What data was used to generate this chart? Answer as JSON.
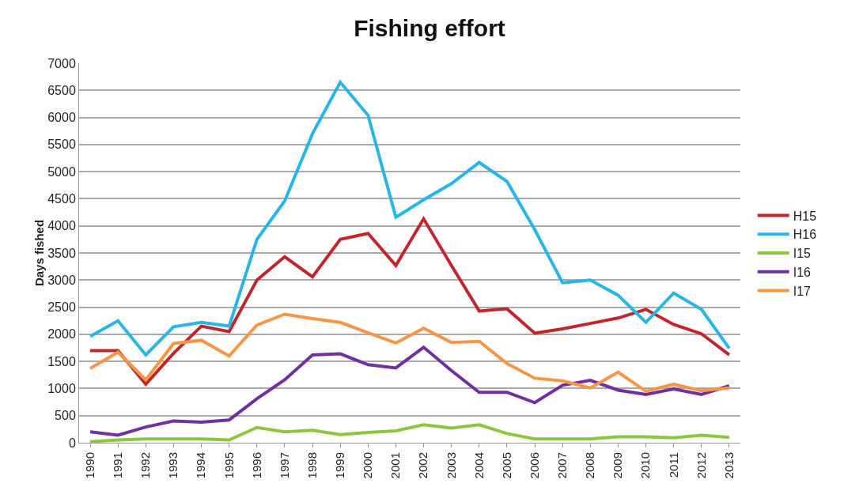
{
  "chart_data": {
    "type": "line",
    "title": "Fishing effort",
    "ylabel": "Days fished",
    "categories": [
      "1990",
      "1991",
      "1992",
      "1993",
      "1994",
      "1995",
      "1996",
      "1997",
      "1998",
      "1999",
      "2000",
      "2001",
      "2002",
      "2003",
      "2004",
      "2005",
      "2006",
      "2007",
      "2008",
      "2009",
      "2010",
      "2011",
      "2012",
      "2013"
    ],
    "series": [
      {
        "name": "H15",
        "color": "#c0272d",
        "values": [
          1700,
          1700,
          1080,
          1650,
          2150,
          2050,
          3000,
          3430,
          3060,
          3750,
          3860,
          3270,
          4130,
          3270,
          2430,
          2470,
          2020,
          2100,
          2200,
          2300,
          2460,
          2180,
          2010,
          1620
        ]
      },
      {
        "name": "H16",
        "color": "#29b5e8",
        "values": [
          1960,
          2250,
          1620,
          2140,
          2220,
          2150,
          3750,
          4460,
          5700,
          6650,
          6040,
          4160,
          4480,
          4780,
          5170,
          4820,
          3930,
          2950,
          3000,
          2720,
          2220,
          2760,
          2460,
          1740
        ]
      },
      {
        "name": "I15",
        "color": "#8dc63f",
        "values": [
          20,
          50,
          70,
          70,
          70,
          50,
          280,
          200,
          230,
          150,
          190,
          220,
          330,
          270,
          330,
          170,
          70,
          70,
          70,
          110,
          110,
          90,
          140,
          100
        ]
      },
      {
        "name": "I16",
        "color": "#7030a0",
        "values": [
          200,
          140,
          290,
          400,
          380,
          420,
          810,
          1160,
          1620,
          1640,
          1440,
          1380,
          1760,
          1330,
          930,
          930,
          740,
          1060,
          1150,
          970,
          890,
          990,
          890,
          1050
        ]
      },
      {
        "name": "I17",
        "color": "#f79646",
        "values": [
          1370,
          1670,
          1160,
          1830,
          1890,
          1600,
          2170,
          2370,
          2290,
          2220,
          2030,
          1840,
          2110,
          1850,
          1870,
          1460,
          1190,
          1140,
          1010,
          1300,
          950,
          1080,
          960,
          1010
        ]
      }
    ],
    "ylim": [
      0,
      7000
    ],
    "yticks": [
      0,
      500,
      1000,
      1500,
      2000,
      2500,
      3000,
      3500,
      4000,
      4500,
      5000,
      5500,
      6000,
      6500,
      7000
    ],
    "grid": "y",
    "legend": "right",
    "marker": "none",
    "line_style": "solid"
  }
}
